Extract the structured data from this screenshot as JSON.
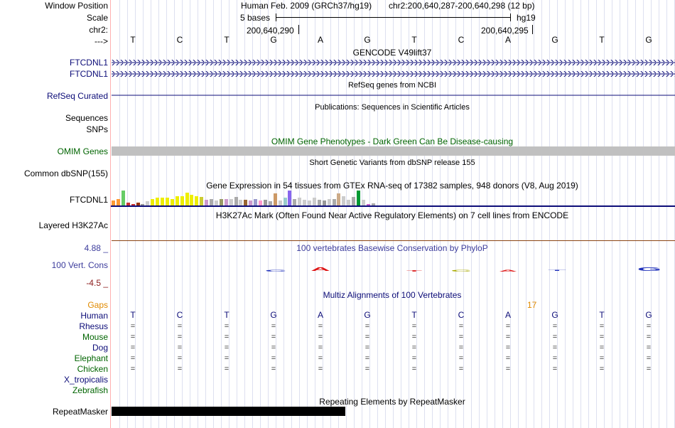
{
  "header": {
    "window_position_label": "Window Position",
    "assembly_text": "Human Feb. 2009 (GRCh37/hg19)",
    "position_text": "chr2:200,640,287-200,640,298 (12 bp)",
    "scale_label": "Scale",
    "scale_text": "5 bases",
    "scale_db": "hg19",
    "chrom_label": "chr2:",
    "pos_left": "200,640,290",
    "pos_right": "200,640,295",
    "strand_label": "--->"
  },
  "bases": [
    "T",
    "C",
    "T",
    "G",
    "A",
    "G",
    "T",
    "C",
    "A",
    "G",
    "T",
    "G"
  ],
  "tracks": {
    "gencode": {
      "title": "GENCODE V49lift37",
      "rows": [
        "FTCDNL1",
        "FTCDNL1"
      ]
    },
    "refseq": {
      "label": "RefSeq Curated",
      "title": "RefSeq genes from NCBI"
    },
    "publications": {
      "title": "Publications: Sequences in Scientific Articles",
      "label": "Sequences"
    },
    "snps": {
      "label": "SNPs"
    },
    "omim": {
      "title": "OMIM Gene Phenotypes - Dark Green Can Be Disease-causing",
      "label": "OMIM Genes"
    },
    "dbsnp": {
      "title": "Short Genetic Variants from dbSNP release 155",
      "label": "Common dbSNP(155)"
    },
    "gtex": {
      "title": "Gene Expression in 54 tissues from GTEx RNA-seq of 17382 samples, 948 donors (V8, Aug 2019)",
      "label": "FTCDNL1",
      "bars": [
        {
          "value": 0.35,
          "color": "#ff9933"
        },
        {
          "value": 0.45,
          "color": "#ff9933"
        },
        {
          "value": 1.0,
          "color": "#66cc66"
        },
        {
          "value": 0.2,
          "color": "#cc3333"
        },
        {
          "value": 0.1,
          "color": "#cc3333"
        },
        {
          "value": 0.2,
          "color": "#993300"
        },
        {
          "value": 0.1,
          "color": "#999999"
        },
        {
          "value": 0.3,
          "color": "#cccccc"
        },
        {
          "value": 0.45,
          "color": "#eeee00"
        },
        {
          "value": 0.5,
          "color": "#eeee00"
        },
        {
          "value": 0.5,
          "color": "#eeee00"
        },
        {
          "value": 0.5,
          "color": "#eeee00"
        },
        {
          "value": 0.45,
          "color": "#eeee00"
        },
        {
          "value": 0.6,
          "color": "#eeee00"
        },
        {
          "value": 0.6,
          "color": "#eeee00"
        },
        {
          "value": 0.85,
          "color": "#eeee00"
        },
        {
          "value": 0.7,
          "color": "#eeee00"
        },
        {
          "value": 0.6,
          "color": "#eeee00"
        },
        {
          "value": 0.55,
          "color": "#cccc33"
        },
        {
          "value": 0.4,
          "color": "#cc99cc"
        },
        {
          "value": 0.45,
          "color": "#aaaaaa"
        },
        {
          "value": 0.35,
          "color": "#cccccc"
        },
        {
          "value": 0.45,
          "color": "#999966"
        },
        {
          "value": 0.45,
          "color": "#cc99cc"
        },
        {
          "value": 0.45,
          "color": "#cccccc"
        },
        {
          "value": 0.55,
          "color": "#aaaaaa"
        },
        {
          "value": 0.4,
          "color": "#cccccc"
        },
        {
          "value": 0.4,
          "color": "#996633"
        },
        {
          "value": 0.35,
          "color": "#cc99cc"
        },
        {
          "value": 0.45,
          "color": "#9999cc"
        },
        {
          "value": 0.35,
          "color": "#ff99cc"
        },
        {
          "value": 0.4,
          "color": "#999999"
        },
        {
          "value": 0.3,
          "color": "#aaaaaa"
        },
        {
          "value": 0.8,
          "color": "#cc9966"
        },
        {
          "value": 0.35,
          "color": "#cccccc"
        },
        {
          "value": 0.5,
          "color": "#99cccc"
        },
        {
          "value": 1.0,
          "color": "#8866ee"
        },
        {
          "value": 0.45,
          "color": "#aaaaaa"
        },
        {
          "value": 0.5,
          "color": "#cccccc"
        },
        {
          "value": 0.4,
          "color": "#cccccc"
        },
        {
          "value": 0.35,
          "color": "#cccccc"
        },
        {
          "value": 0.5,
          "color": "#cccccc"
        },
        {
          "value": 0.4,
          "color": "#aaaaaa"
        },
        {
          "value": 0.35,
          "color": "#999999"
        },
        {
          "value": 0.45,
          "color": "#cccccc"
        },
        {
          "value": 0.45,
          "color": "#aaaaaa"
        },
        {
          "value": 0.8,
          "color": "#ccaa88"
        },
        {
          "value": 0.6,
          "color": "#cccccc"
        },
        {
          "value": 0.4,
          "color": "#cccccc"
        },
        {
          "value": 0.55,
          "color": "#aaaaaa"
        },
        {
          "value": 1.0,
          "color": "#009933"
        },
        {
          "value": 0.4,
          "color": "#cccccc"
        },
        {
          "value": 0.1,
          "color": "#cc66cc"
        },
        {
          "value": 0.15,
          "color": "#aaaaaa"
        }
      ]
    },
    "h3k27ac": {
      "title": "H3K27Ac Mark (Often Found Near Active Regulatory Elements) on 7 cell lines from ENCODE",
      "label": "Layered H3K27Ac"
    },
    "conservation": {
      "title": "100 vertebrates Basewise Conservation by PhyloP",
      "label": "100 Vert. Cons",
      "ymax": "4.88 _",
      "ymin": "-4.5 _",
      "logos": [
        "C",
        "A",
        "T",
        "C",
        "A",
        "T",
        "G"
      ]
    },
    "multiz": {
      "title": "Multiz Alignments of 100 Vertebrates",
      "gaps_label": "Gaps",
      "gaps_value": "17",
      "human_label": "Human",
      "species": [
        "Rhesus",
        "Mouse",
        "Dog",
        "Elephant",
        "Chicken",
        "X_tropicalis",
        "Zebrafish"
      ],
      "eq_symbol": "="
    },
    "repeatmasker": {
      "title": "Repeating Elements by RepeatMasker",
      "label": "RepeatMasker"
    }
  },
  "colors": {
    "navy": "#0c0c78",
    "green": "#006400",
    "omim_bar": "#c0c0c0",
    "h3k27ac_line": "#8b4513",
    "cons_blue": "#3c3c9c",
    "ymin_red": "#8b1a1a",
    "gaps_orange": "#e08a00"
  }
}
